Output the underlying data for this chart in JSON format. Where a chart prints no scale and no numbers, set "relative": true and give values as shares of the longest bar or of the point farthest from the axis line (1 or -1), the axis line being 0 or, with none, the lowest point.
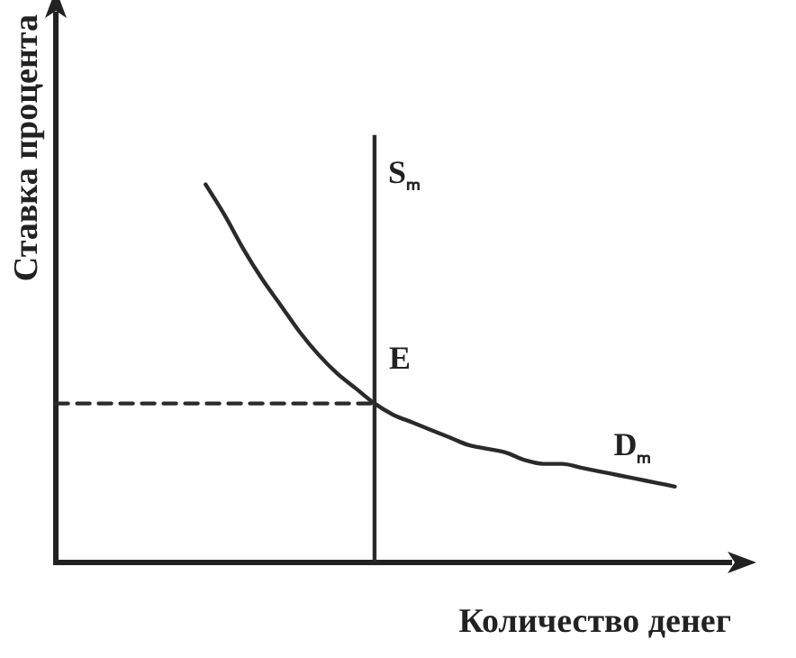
{
  "chart_data": {
    "type": "line",
    "relative": true,
    "xlabel": "Количество денег",
    "ylabel": "Ставка процента",
    "legend": false,
    "marker": "none",
    "annotations": [
      "Sₘ",
      "E"
    ],
    "categories": [
      null,
      null,
      null,
      null,
      null,
      null,
      null,
      null,
      null,
      null,
      null,
      null,
      null,
      null,
      null,
      null,
      null,
      null,
      null,
      null,
      null,
      null,
      null,
      null,
      null,
      null,
      null,
      null,
      null,
      null,
      null,
      null,
      null,
      null,
      null,
      null,
      null
    ],
    "series": [
      {
        "name": "Dₘ",
        "color": "#2a2a2a",
        "line_style": "solid",
        "values": [
          null,
          null,
          null,
          null,
          null,
          null,
          null,
          null,
          1.0,
          0.92,
          0.83,
          0.75,
          0.68,
          0.61,
          0.55,
          0.5,
          0.46,
          0.42,
          0.39,
          0.37,
          0.35,
          0.33,
          0.31,
          0.3,
          0.29,
          0.27,
          0.26,
          0.26,
          0.25,
          0.24,
          0.23,
          0.22,
          0.21,
          0.2,
          null,
          null,
          null
        ]
      },
      {
        "color": "#2a2a2a",
        "line_style": "dashed",
        "values": [
          0.42,
          0.42,
          0.42,
          0.42,
          0.42,
          0.42,
          0.42,
          0.42,
          0.42,
          0.42,
          0.42,
          0.42,
          0.42,
          0.42,
          0.42,
          0.42,
          0.42,
          0.42,
          null,
          null,
          null,
          null,
          null,
          null,
          null,
          null,
          null,
          null,
          null,
          null,
          null,
          null,
          null,
          null,
          null,
          null,
          null
        ]
      }
    ]
  }
}
